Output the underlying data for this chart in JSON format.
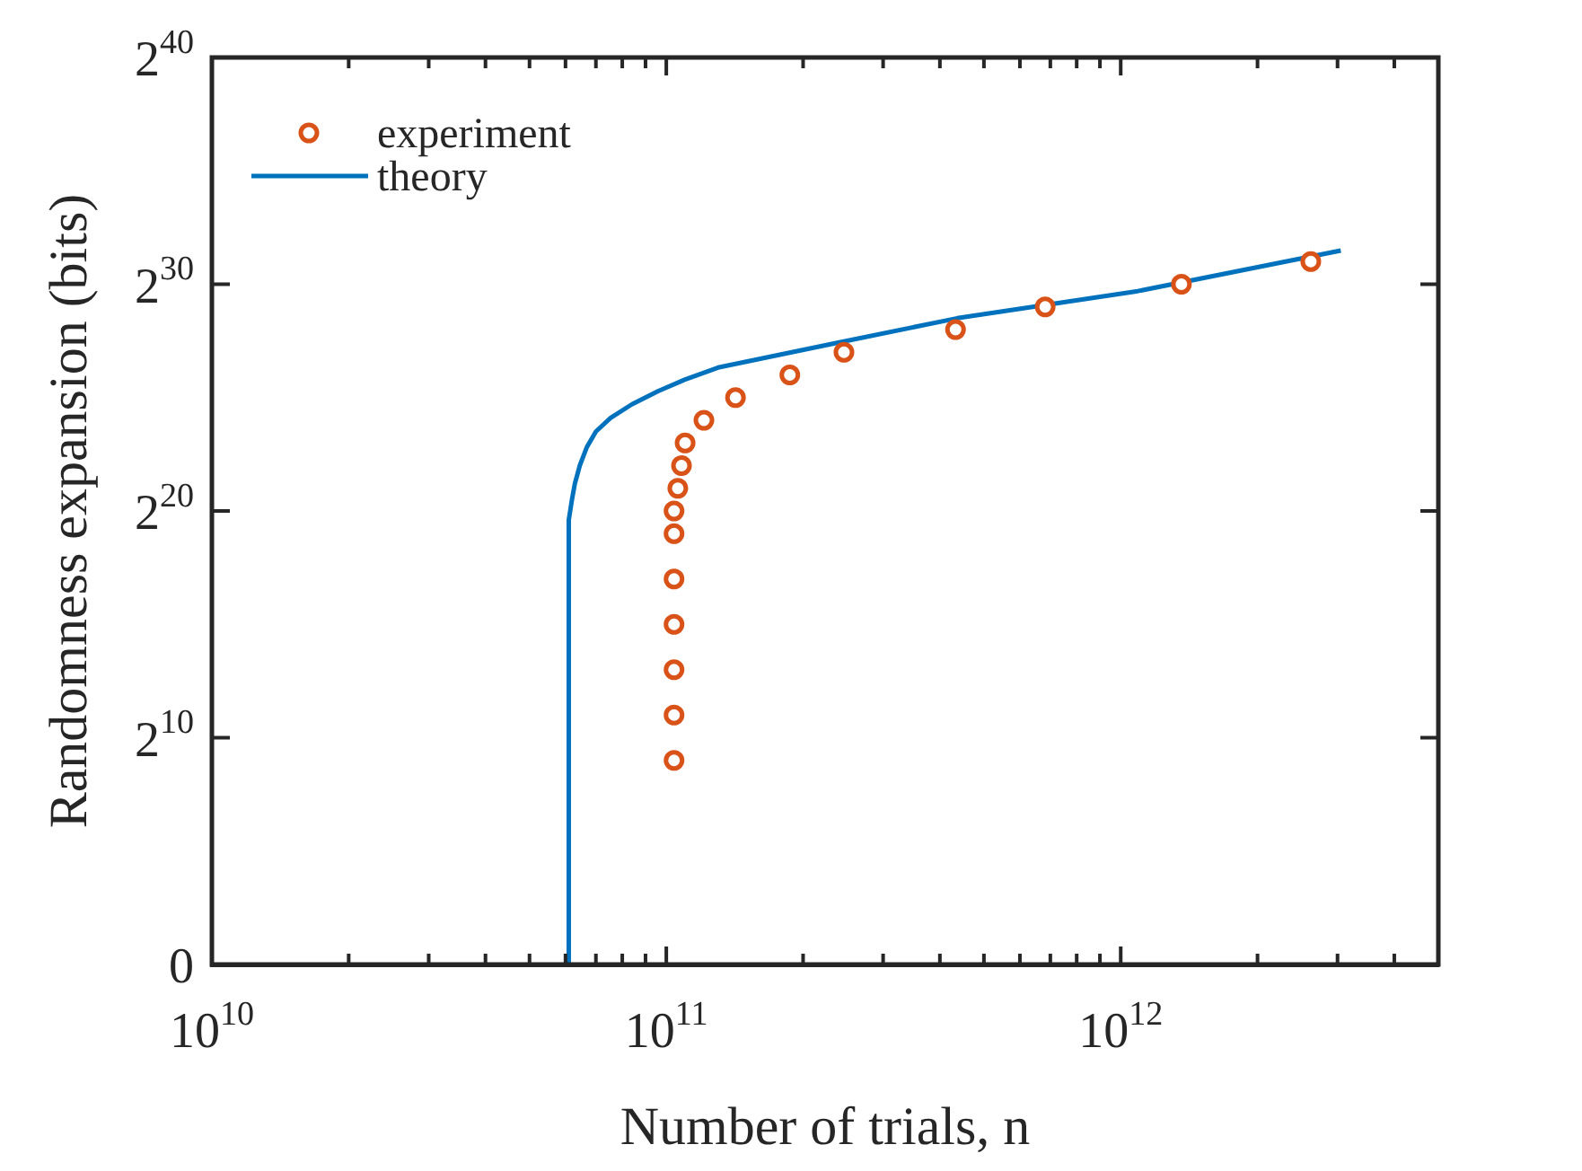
{
  "chart_data": {
    "type": "scatter",
    "xlabel": "Number of trials, n",
    "ylabel": "Randomness expansion (bits)",
    "log": "xy",
    "xlim": [
      10000000000.0,
      5000000000000.0
    ],
    "xticks": [
      {
        "value": 10000000000.0,
        "label": "10$^{10}$"
      },
      {
        "value": 20000000000.0,
        "label": null
      },
      {
        "value": 30000000000.0,
        "label": null
      },
      {
        "value": 40000000000.0,
        "label": null
      },
      {
        "value": 50000000000.0,
        "label": null
      },
      {
        "value": 60000000000.0,
        "label": null
      },
      {
        "value": 70000000000.0,
        "label": null
      },
      {
        "value": 80000000000.0,
        "label": null
      },
      {
        "value": 90000000000.0,
        "label": null
      },
      {
        "value": 100000000000.0,
        "label": "10$^{11}$"
      },
      {
        "value": 200000000000.0,
        "label": null
      },
      {
        "value": 300000000000.0,
        "label": null
      },
      {
        "value": 400000000000.0,
        "label": null
      },
      {
        "value": 500000000000.0,
        "label": null
      },
      {
        "value": 600000000000.0,
        "label": null
      },
      {
        "value": 700000000000.0,
        "label": null
      },
      {
        "value": 800000000000.0,
        "label": null
      },
      {
        "value": 900000000000.0,
        "label": null
      },
      {
        "value": 1000000000000.0,
        "label": "10$^{12}$"
      },
      {
        "value": 2000000000000.0,
        "label": null
      },
      {
        "value": 3000000000000.0,
        "label": null
      },
      {
        "value": 4000000000000.0,
        "label": null
      },
      {
        "value": 5000000000000.0,
        "label": null
      }
    ],
    "ylim": [
      0,
      1099511627776
    ],
    "yticks": [
      0,
      {
        "value": 1024,
        "label": "2$^{10}$"
      },
      {
        "value": 1048576,
        "label": "2$^{20}$"
      },
      {
        "value": 1073741824,
        "label": "2$^{30}$"
      },
      {
        "value": 1099511627776,
        "label": "2$^{40}$"
      }
    ],
    "legend": "top left",
    "grid": false,
    "series": [
      {
        "name": "experiment",
        "type": "scatter",
        "marker": "circle",
        "color": "#d95319",
        "x": [
          104000000000.0,
          104000000000.0,
          104000000000.0,
          104000000000.0,
          104000000000.0,
          104000000000.0,
          104000000000.0,
          106000000000.0,
          108000000000.0,
          110000000000.0,
          121000000000.0,
          142000000000.0,
          187000000000.0,
          246000000000.0,
          433000000000.0,
          682000000000.0,
          1360000000000.0,
          2620000000000.0
        ],
        "values": [
          512,
          2048,
          8192,
          32768,
          131072,
          524288,
          1048576,
          2097152,
          4194304,
          8388608,
          16777216,
          33554432,
          67108864,
          134217728,
          268435456,
          536870912,
          1073741824,
          2147483648
        ]
      },
      {
        "name": "theory",
        "type": "line",
        "marker": "none",
        "line_style": "solid",
        "color": "#0072bd",
        "x": [
          60600000000.0,
          61000000000.0,
          62000000000.0,
          62900000000.0,
          64500000000.0,
          66800000000.0,
          70000000000.0,
          75400000000.0,
          84000000000.0,
          96000000000.0,
          110000000000.0,
          130000000000.0,
          239000000000.0,
          437000000000.0,
          1090000000000.0,
          3050000000000.0
        ],
        "values": [
          1,
          794000,
          1480000,
          2400000,
          4194304,
          7300000,
          11900000,
          18000000,
          27300000,
          41000000,
          58400000,
          84000000,
          180000000,
          380000000,
          870000000,
          3000000000
        ]
      }
    ]
  }
}
